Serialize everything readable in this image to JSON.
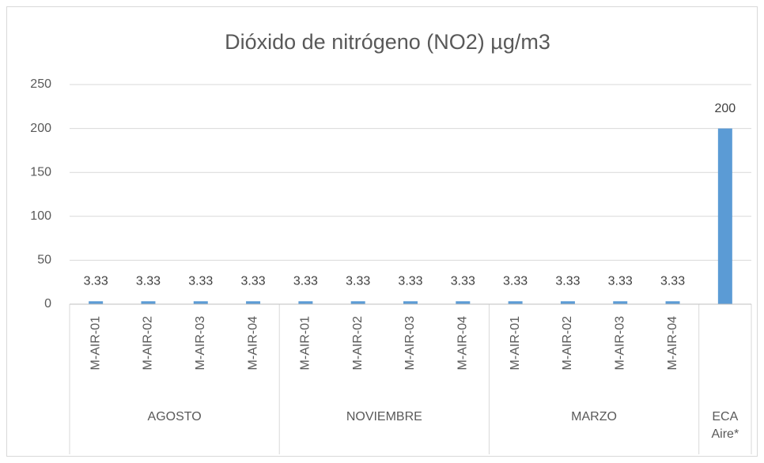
{
  "chart_data": {
    "type": "bar",
    "title": "Dióxido de nitrógeno (NO2) µg/m3",
    "groups": [
      {
        "name": "AGOSTO",
        "categories": [
          "M-AIR-01",
          "M-AIR-02",
          "M-AIR-03",
          "M-AIR-04"
        ],
        "values": [
          3.33,
          3.33,
          3.33,
          3.33
        ]
      },
      {
        "name": "NOVIEMBRE",
        "categories": [
          "M-AIR-01",
          "M-AIR-02",
          "M-AIR-03",
          "M-AIR-04"
        ],
        "values": [
          3.33,
          3.33,
          3.33,
          3.33
        ]
      },
      {
        "name": "MARZO",
        "categories": [
          "M-AIR-01",
          "M-AIR-02",
          "M-AIR-03",
          "M-AIR-04"
        ],
        "values": [
          3.33,
          3.33,
          3.33,
          3.33
        ]
      },
      {
        "name": "ECA Aire*",
        "categories": [
          null
        ],
        "values": [
          200
        ]
      }
    ],
    "color": "#5b9bd5",
    "ylim": [
      0,
      250
    ],
    "yticks": [
      0,
      50,
      100,
      150,
      200,
      250
    ],
    "grid": true
  }
}
